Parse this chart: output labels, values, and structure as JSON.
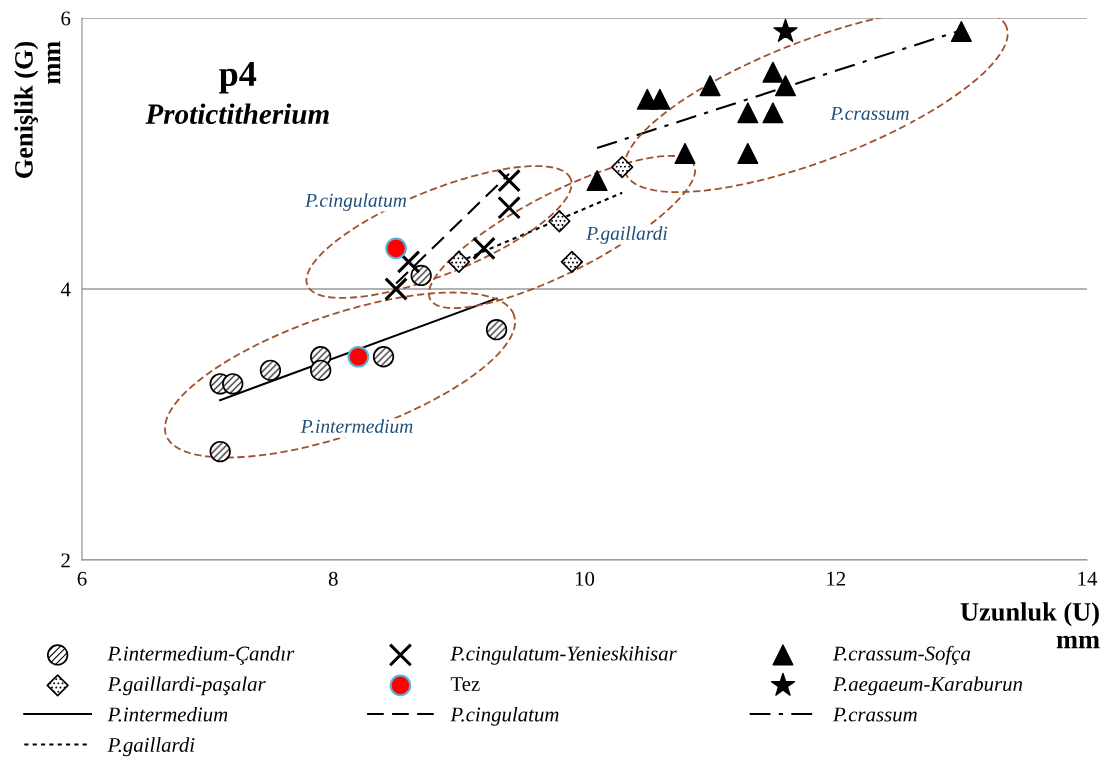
{
  "chart_data": {
    "type": "scatter",
    "title": "p4",
    "subtitle": "Protictitherium",
    "xlabel": "Uzunluk (U)\nmm",
    "ylabel": "Genişlik (G)\nmm",
    "xlim": [
      6,
      14
    ],
    "xticks": [
      6,
      8,
      10,
      12,
      14
    ],
    "ylim": [
      2,
      6
    ],
    "yticks": [
      2,
      4,
      6
    ],
    "grid": "y",
    "legend": "bottom",
    "series": [
      {
        "name": "P.intermedium-Çandır",
        "color": "#000000",
        "marker": "circle",
        "x": [
          7.1,
          7.2,
          7.5,
          7.9,
          7.9,
          8.4,
          8.7,
          9.3,
          7.1
        ],
        "values": [
          3.3,
          3.3,
          3.4,
          3.5,
          3.4,
          3.5,
          4.1,
          3.7,
          2.8
        ]
      },
      {
        "name": "P.cingulatum-Yenieskihisar",
        "color": "#000000",
        "marker": "cross",
        "x": [
          8.5,
          8.6,
          9.2,
          9.4,
          9.4
        ],
        "values": [
          4.0,
          4.2,
          4.3,
          4.6,
          4.8
        ]
      },
      {
        "name": "P.crassum-Sofça",
        "color": "#000000",
        "marker": "triangle",
        "x": [
          10.1,
          10.5,
          10.6,
          10.8,
          11.0,
          11.3,
          11.3,
          11.5,
          11.5,
          11.6,
          13.0
        ],
        "values": [
          4.8,
          5.4,
          5.4,
          5.0,
          5.5,
          5.3,
          5.0,
          5.6,
          5.3,
          5.5,
          5.9
        ]
      },
      {
        "name": "P.gaillardi-paşalar",
        "color": "#000000",
        "marker": "diamond",
        "x": [
          9.0,
          9.8,
          9.9,
          10.3
        ],
        "values": [
          4.2,
          4.5,
          4.2,
          4.9
        ]
      },
      {
        "name": "Tez",
        "color": "#ff0000",
        "marker": "circle",
        "x": [
          8.5,
          8.2
        ],
        "values": [
          4.3,
          3.5
        ]
      },
      {
        "name": "P.aegaeum-Karaburun",
        "color": "#000000",
        "marker": "star",
        "x": [
          11.6
        ],
        "values": [
          5.9
        ]
      },
      {
        "name": "P.intermedium",
        "type": "line",
        "line_style": "solid",
        "color": "#000000",
        "x": [
          7.1,
          9.3
        ],
        "values": [
          3.18,
          3.93
        ]
      },
      {
        "name": "P.cingulatum",
        "type": "line",
        "line_style": "dashed",
        "color": "#000000",
        "x": [
          8.5,
          9.4
        ],
        "values": [
          4.04,
          4.85
        ]
      },
      {
        "name": "P.crassum",
        "type": "line",
        "line_style": "dashdot",
        "color": "#000000",
        "x": [
          10.1,
          13.0
        ],
        "values": [
          5.04,
          5.91
        ]
      },
      {
        "name": "P.gaillardi",
        "type": "line",
        "line_style": "dotted",
        "color": "#000000",
        "x": [
          9.0,
          10.3
        ],
        "values": [
          4.2,
          4.71
        ]
      }
    ],
    "annotations": [
      "P.intermedium",
      "P.cingulatum",
      "P.gaillardi",
      "P.crassum"
    ]
  }
}
